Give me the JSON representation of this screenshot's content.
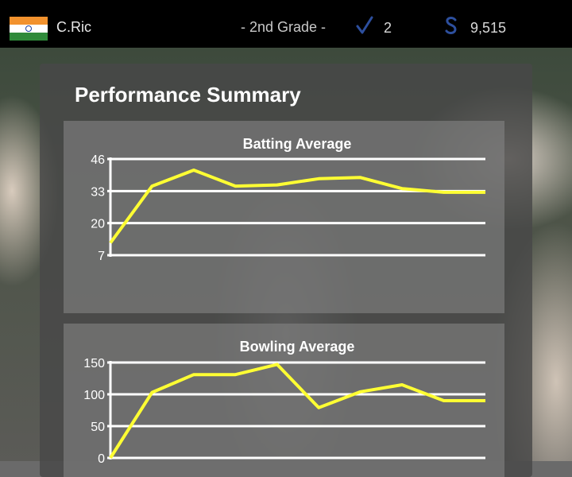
{
  "header": {
    "flag": "india-flag",
    "username": "C.Ric",
    "grade": "- 2nd Grade -",
    "level_icon": "tick-icon",
    "level": "2",
    "currency_icon": "dollar-icon",
    "currency": "9,515"
  },
  "panel": {
    "title": "Performance Summary"
  },
  "colors": {
    "line": "#ffff33",
    "grid": "#ffffff"
  },
  "chart_data": [
    {
      "type": "line",
      "title": "Batting Average",
      "y_ticks": [
        7,
        20,
        33,
        46
      ],
      "ylim": [
        7,
        46
      ],
      "grid": true,
      "series": [
        {
          "values": [
            12,
            35,
            41.5,
            35,
            35.5,
            38,
            38.5,
            34,
            32.5,
            32.5
          ]
        }
      ]
    },
    {
      "type": "line",
      "title": "Bowling Average",
      "y_ticks": [
        0,
        50,
        100,
        150
      ],
      "ylim": [
        0,
        150
      ],
      "grid": true,
      "series": [
        {
          "values": [
            0,
            103,
            131,
            131,
            147,
            79,
            104,
            115,
            90,
            90
          ]
        }
      ]
    }
  ]
}
